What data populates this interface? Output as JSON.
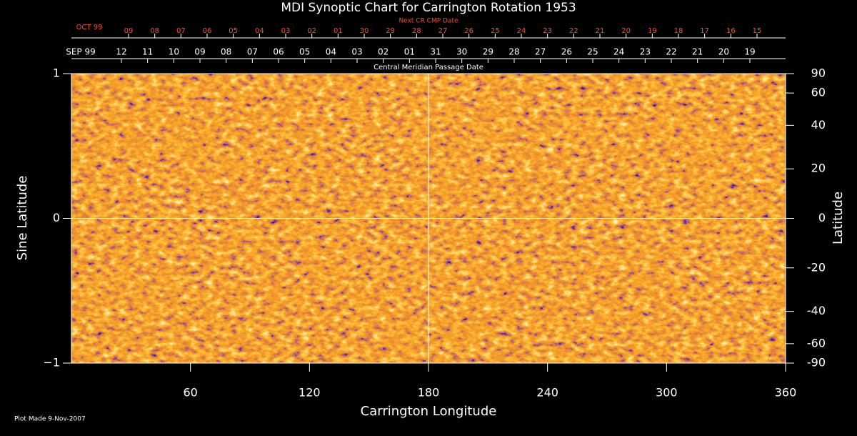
{
  "chart_data": {
    "type": "synoptic",
    "title": "MDI Synoptic Chart for Carrington Rotation 1953",
    "xlabel": "Carrington Longitude",
    "ylabel": "Sine Latitude",
    "y2label": "Latitude",
    "xlim": [
      0,
      360
    ],
    "xticks": [
      60,
      120,
      180,
      240,
      300,
      360
    ],
    "ylim": [
      -1,
      1
    ],
    "yticks": [
      {
        "value": -1,
        "label": "−1"
      },
      0,
      1
    ],
    "y2lim": [
      -90,
      90
    ],
    "y2scale": "sine",
    "y2ticks": [
      90,
      60,
      40,
      20,
      0,
      -20,
      -40,
      -60,
      -90
    ],
    "cmp_label": "Central Meridian Passage Date",
    "cmp_month": "SEP 99",
    "cmp_ticks": [
      {
        "value": 25.2,
        "label": "12"
      },
      {
        "value": 38.4,
        "label": "11"
      },
      {
        "value": 51.6,
        "label": "10"
      },
      {
        "value": 64.8,
        "label": "09"
      },
      {
        "value": 78.0,
        "label": "08"
      },
      {
        "value": 91.2,
        "label": "07"
      },
      {
        "value": 104.4,
        "label": "06"
      },
      {
        "value": 117.6,
        "label": "05"
      },
      {
        "value": 130.8,
        "label": "04"
      },
      {
        "value": 144.0,
        "label": "03"
      },
      {
        "value": 157.2,
        "label": "02"
      },
      {
        "value": 170.4,
        "label": "01"
      },
      {
        "value": 183.6,
        "label": "31"
      },
      {
        "value": 196.8,
        "label": "30"
      },
      {
        "value": 210.0,
        "label": "29"
      },
      {
        "value": 223.2,
        "label": "28"
      },
      {
        "value": 236.4,
        "label": "27"
      },
      {
        "value": 249.6,
        "label": "26"
      },
      {
        "value": 262.8,
        "label": "25"
      },
      {
        "value": 276.0,
        "label": "24"
      },
      {
        "value": 289.2,
        "label": "23"
      },
      {
        "value": 302.4,
        "label": "22"
      },
      {
        "value": 315.6,
        "label": "21"
      },
      {
        "value": 328.8,
        "label": "20"
      },
      {
        "value": 342.0,
        "label": "19"
      }
    ],
    "next_label": "Next CR CMP Date",
    "next_month": "OCT 99",
    "next_ticks": [
      {
        "value": 28.8,
        "label": "09"
      },
      {
        "value": 42.0,
        "label": "08"
      },
      {
        "value": 55.2,
        "label": "07"
      },
      {
        "value": 68.4,
        "label": "06"
      },
      {
        "value": 81.6,
        "label": "05"
      },
      {
        "value": 94.8,
        "label": "04"
      },
      {
        "value": 108.0,
        "label": "03"
      },
      {
        "value": 121.2,
        "label": "02"
      },
      {
        "value": 134.4,
        "label": "01"
      },
      {
        "value": 147.6,
        "label": "30"
      },
      {
        "value": 160.8,
        "label": "29"
      },
      {
        "value": 174.0,
        "label": "28"
      },
      {
        "value": 187.2,
        "label": "27"
      },
      {
        "value": 200.4,
        "label": "26"
      },
      {
        "value": 213.6,
        "label": "25"
      },
      {
        "value": 226.8,
        "label": "24"
      },
      {
        "value": 240.0,
        "label": "23"
      },
      {
        "value": 253.2,
        "label": "22"
      },
      {
        "value": 266.4,
        "label": "21"
      },
      {
        "value": 279.6,
        "label": "20"
      },
      {
        "value": 292.8,
        "label": "19"
      },
      {
        "value": 306.0,
        "label": "18"
      },
      {
        "value": 319.2,
        "label": "17"
      },
      {
        "value": 332.4,
        "label": "16"
      },
      {
        "value": 345.6,
        "label": "15"
      }
    ],
    "footnote": "Plot Made  9-Nov-2007"
  }
}
